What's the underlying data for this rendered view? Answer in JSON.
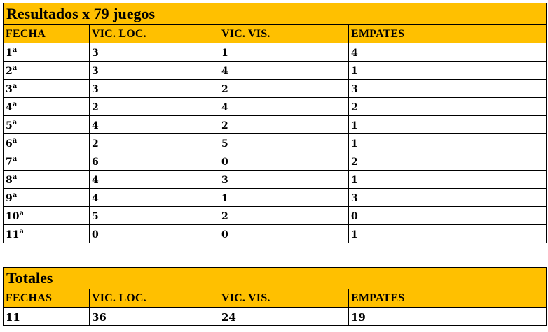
{
  "results": {
    "title": "Resultados x 79 juegos",
    "headers": [
      "FECHA",
      "VIC. LOC.",
      "VIC. VIS.",
      "EMPATES"
    ],
    "ordinal_suffix": "a",
    "rows": [
      {
        "fecha": "1",
        "loc": "3",
        "vis": "1",
        "emp": "4"
      },
      {
        "fecha": "2",
        "loc": "3",
        "vis": "4",
        "emp": "1"
      },
      {
        "fecha": "3",
        "loc": "3",
        "vis": "2",
        "emp": "3"
      },
      {
        "fecha": "4",
        "loc": "2",
        "vis": "4",
        "emp": "2"
      },
      {
        "fecha": "5",
        "loc": "4",
        "vis": "2",
        "emp": "1"
      },
      {
        "fecha": "6",
        "loc": "2",
        "vis": "5",
        "emp": "1"
      },
      {
        "fecha": "7",
        "loc": "6",
        "vis": "0",
        "emp": "2"
      },
      {
        "fecha": "8",
        "loc": "4",
        "vis": "3",
        "emp": "1"
      },
      {
        "fecha": "9",
        "loc": "4",
        "vis": "1",
        "emp": "3"
      },
      {
        "fecha": "10",
        "loc": "5",
        "vis": "2",
        "emp": "0"
      },
      {
        "fecha": "11",
        "loc": "0",
        "vis": "0",
        "emp": "1"
      }
    ]
  },
  "totals": {
    "title": "Totales",
    "headers": [
      "FECHAS",
      "VIC. LOC.",
      "VIC. VIS.",
      "EMPATES"
    ],
    "row": {
      "fechas": "11",
      "loc": "36",
      "vis": "24",
      "emp": "19"
    }
  },
  "colors": {
    "header_bg": "#ffc000",
    "border": "#000000"
  }
}
